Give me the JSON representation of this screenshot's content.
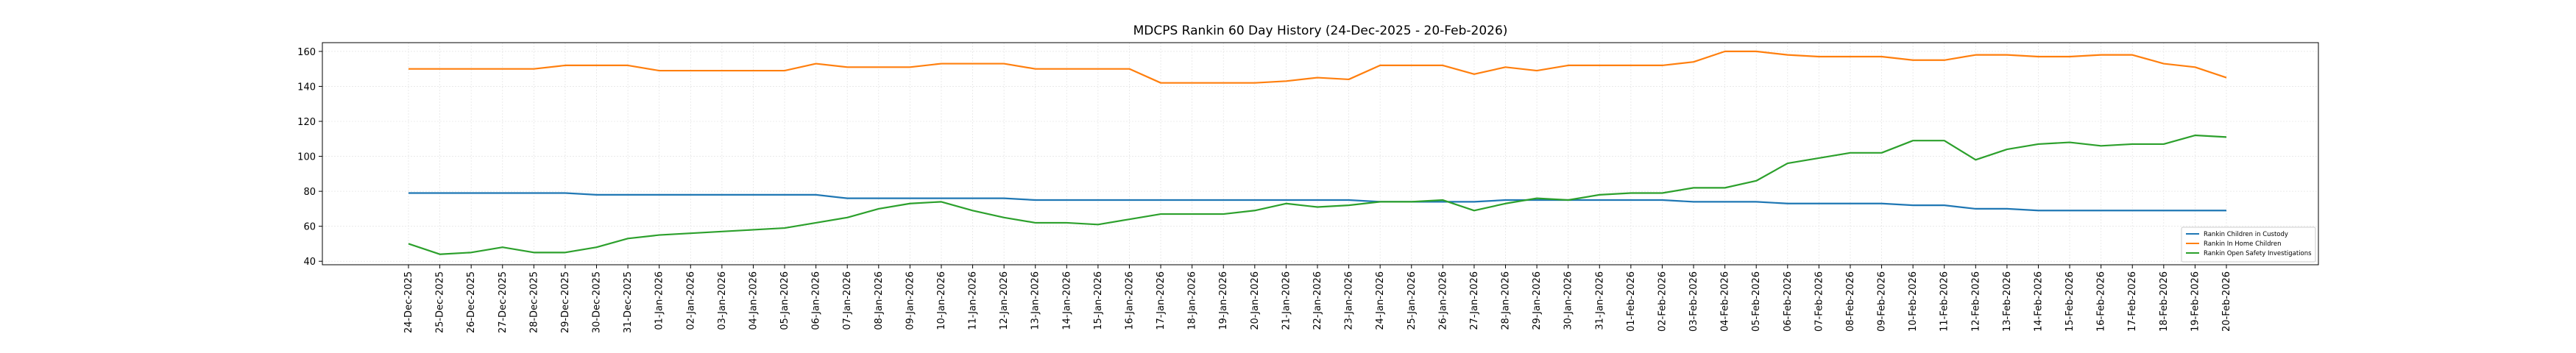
{
  "chart_data": {
    "type": "line",
    "title": "MDCPS Rankin 60 Day History (24-Dec-2025 - 20-Feb-2026)",
    "xlabel": "",
    "ylabel": "",
    "ylim": [
      38,
      165
    ],
    "yticks": [
      40,
      60,
      80,
      100,
      120,
      140,
      160
    ],
    "grid": true,
    "legend_position": "lower-right",
    "x": [
      "24-Dec-2025",
      "25-Dec-2025",
      "26-Dec-2025",
      "27-Dec-2025",
      "28-Dec-2025",
      "29-Dec-2025",
      "30-Dec-2025",
      "31-Dec-2025",
      "01-Jan-2026",
      "02-Jan-2026",
      "03-Jan-2026",
      "04-Jan-2026",
      "05-Jan-2026",
      "06-Jan-2026",
      "07-Jan-2026",
      "08-Jan-2026",
      "09-Jan-2026",
      "10-Jan-2026",
      "11-Jan-2026",
      "12-Jan-2026",
      "13-Jan-2026",
      "14-Jan-2026",
      "15-Jan-2026",
      "16-Jan-2026",
      "17-Jan-2026",
      "18-Jan-2026",
      "19-Jan-2026",
      "20-Jan-2026",
      "21-Jan-2026",
      "22-Jan-2026",
      "23-Jan-2026",
      "24-Jan-2026",
      "25-Jan-2026",
      "26-Jan-2026",
      "27-Jan-2026",
      "28-Jan-2026",
      "29-Jan-2026",
      "30-Jan-2026",
      "31-Jan-2026",
      "01-Feb-2026",
      "02-Feb-2026",
      "03-Feb-2026",
      "04-Feb-2026",
      "05-Feb-2026",
      "06-Feb-2026",
      "07-Feb-2026",
      "08-Feb-2026",
      "09-Feb-2026",
      "10-Feb-2026",
      "11-Feb-2026",
      "12-Feb-2026",
      "13-Feb-2026",
      "14-Feb-2026",
      "15-Feb-2026",
      "16-Feb-2026",
      "17-Feb-2026",
      "18-Feb-2026",
      "19-Feb-2026",
      "20-Feb-2026"
    ],
    "series": [
      {
        "name": "Rankin Children in Custody",
        "color": "#1f77b4",
        "values": [
          79,
          79,
          79,
          79,
          79,
          79,
          78,
          78,
          78,
          78,
          78,
          78,
          78,
          78,
          76,
          76,
          76,
          76,
          76,
          76,
          75,
          75,
          75,
          75,
          75,
          75,
          75,
          75,
          75,
          75,
          75,
          74,
          74,
          74,
          74,
          75,
          75,
          75,
          75,
          75,
          75,
          74,
          74,
          74,
          73,
          73,
          73,
          73,
          72,
          72,
          70,
          70,
          69,
          69,
          69,
          69,
          69,
          69,
          69
        ]
      },
      {
        "name": "Rankin In Home Children",
        "color": "#ff7f0e",
        "values": [
          150,
          150,
          150,
          150,
          150,
          152,
          152,
          152,
          149,
          149,
          149,
          149,
          149,
          153,
          151,
          151,
          151,
          153,
          153,
          153,
          150,
          150,
          150,
          150,
          142,
          142,
          142,
          142,
          143,
          145,
          144,
          152,
          152,
          152,
          147,
          151,
          149,
          152,
          152,
          152,
          152,
          154,
          160,
          160,
          158,
          157,
          157,
          157,
          155,
          155,
          158,
          158,
          157,
          157,
          158,
          158,
          153,
          151,
          145
        ]
      },
      {
        "name": "Rankin Open Safety Investigations",
        "color": "#2ca02c",
        "values": [
          50,
          44,
          45,
          48,
          45,
          45,
          48,
          53,
          55,
          56,
          57,
          58,
          59,
          62,
          65,
          70,
          73,
          74,
          69,
          65,
          62,
          62,
          61,
          64,
          67,
          67,
          67,
          69,
          73,
          71,
          72,
          74,
          74,
          75,
          69,
          73,
          76,
          75,
          78,
          79,
          79,
          82,
          82,
          86,
          96,
          99,
          102,
          102,
          109,
          109,
          98,
          104,
          107,
          108,
          106,
          107,
          107,
          112,
          111
        ]
      }
    ]
  }
}
